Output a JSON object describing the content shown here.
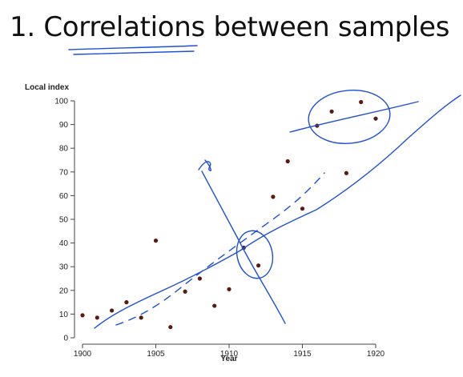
{
  "slide": {
    "title": "1. Correlations between samples"
  },
  "colors": {
    "point": "#5a1a10",
    "annotation": "#1f4fd6",
    "axis": "#444444"
  },
  "chart_data": {
    "type": "scatter",
    "ylabel": "Local index",
    "xlabel": "Year",
    "xlim": [
      1900,
      1920
    ],
    "ylim": [
      0,
      100
    ],
    "xticks": [
      1900,
      1905,
      1910,
      1915,
      1920
    ],
    "yticks": [
      0,
      10,
      20,
      30,
      40,
      50,
      60,
      70,
      80,
      90,
      100
    ],
    "grid": false,
    "points": [
      {
        "x": 1900,
        "y": 9.5
      },
      {
        "x": 1901,
        "y": 8.5
      },
      {
        "x": 1902,
        "y": 11.5
      },
      {
        "x": 1903,
        "y": 15
      },
      {
        "x": 1904,
        "y": 8.5
      },
      {
        "x": 1905,
        "y": 41
      },
      {
        "x": 1906,
        "y": 4.5
      },
      {
        "x": 1907,
        "y": 19.5
      },
      {
        "x": 1908,
        "y": 25
      },
      {
        "x": 1909,
        "y": 13.5
      },
      {
        "x": 1910,
        "y": 20.5
      },
      {
        "x": 1911,
        "y": 38
      },
      {
        "x": 1912,
        "y": 30.5
      },
      {
        "x": 1913,
        "y": 59.5
      },
      {
        "x": 1914,
        "y": 74.5
      },
      {
        "x": 1915,
        "y": 54.5
      },
      {
        "x": 1916,
        "y": 89.5
      },
      {
        "x": 1917,
        "y": 95.5
      },
      {
        "x": 1918,
        "y": 69.5
      },
      {
        "x": 1919,
        "y": 99.5
      },
      {
        "x": 1920,
        "y": 92.5
      }
    ]
  }
}
